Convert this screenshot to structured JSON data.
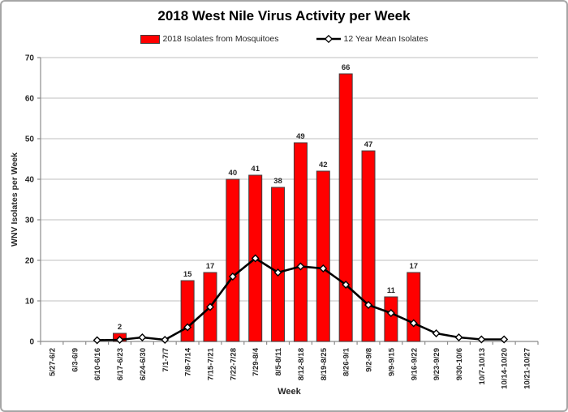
{
  "chart_data": {
    "type": "bar+line",
    "title": "2018 West Nile Virus Activity per Week",
    "xlabel": "Week",
    "ylabel": "WNV Isolates per Week",
    "ylim": [
      0,
      70
    ],
    "ytick_interval": 10,
    "grid": true,
    "legend_position": "top-center",
    "categories": [
      "5/27-6/2",
      "6/3-6/9",
      "6/10-6/16",
      "6/17-6/23",
      "6/24-6/30",
      "7/1-7/7",
      "7/8-7/14",
      "7/15-7/21",
      "7/22-7/28",
      "7/29-8/4",
      "8/5-8/11",
      "8/12-8/18",
      "8/19-8/25",
      "8/26-9/1",
      "9/2-9/8",
      "9/9-9/15",
      "9/16-9/22",
      "9/23-9/29",
      "9/30-10/6",
      "10/7-10/13",
      "10/14-10/20",
      "10/21-10/27"
    ],
    "series": [
      {
        "name": "2018 Isolates from Mosquitoes",
        "type": "bar",
        "color": "#ff0000",
        "border_color": "#404040",
        "data_labels": true,
        "values": [
          0,
          0,
          0,
          2,
          0,
          0,
          15,
          17,
          40,
          41,
          38,
          49,
          42,
          66,
          47,
          11,
          17,
          0,
          0,
          0,
          0,
          0
        ]
      },
      {
        "name": "12 Year Mean Isolates",
        "type": "line",
        "color": "#000000",
        "marker": "open-diamond",
        "marker_fill": "#ffffff",
        "values": [
          null,
          null,
          0.3,
          0.4,
          1,
          0.4,
          3.5,
          8.5,
          16,
          20.5,
          17,
          18.5,
          18,
          14,
          9,
          7,
          4.5,
          2,
          1,
          0.5,
          0.5,
          null
        ]
      }
    ],
    "colors": {
      "grid": "#bfbfbf",
      "axis": "#8c8c8c",
      "text": "#262626",
      "figure_border": "#a6a6a6",
      "background": "#ffffff"
    }
  }
}
